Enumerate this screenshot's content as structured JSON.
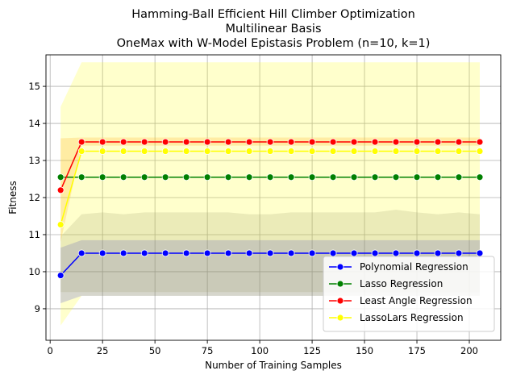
{
  "chart_data": {
    "type": "line",
    "title_lines": [
      "Hamming-Ball Efficient Hill Climber Optimization",
      "Multilinear Basis",
      "OneMax with W-Model Epistasis Problem (n=10, k=1)"
    ],
    "xlabel": "Number of Training Samples",
    "ylabel": "Fitness",
    "xlim": [
      -2,
      215
    ],
    "ylim": [
      8.15,
      15.85
    ],
    "xticks": [
      0,
      25,
      50,
      75,
      100,
      125,
      150,
      175,
      200
    ],
    "yticks": [
      9,
      10,
      11,
      12,
      13,
      14,
      15
    ],
    "grid": true,
    "legend_position": "lower-right",
    "x": [
      5,
      15,
      25,
      35,
      45,
      55,
      65,
      75,
      85,
      95,
      105,
      115,
      125,
      135,
      145,
      155,
      165,
      175,
      185,
      195,
      205
    ],
    "series": [
      {
        "name": "Polynomial Regression",
        "color": "#0000ff",
        "band_color": "#0000ff",
        "values": [
          9.9,
          10.5,
          10.5,
          10.5,
          10.5,
          10.5,
          10.5,
          10.5,
          10.5,
          10.5,
          10.5,
          10.5,
          10.5,
          10.5,
          10.5,
          10.5,
          10.5,
          10.5,
          10.5,
          10.5,
          10.5
        ],
        "band_lower": [
          9.15,
          9.35,
          9.35,
          9.35,
          9.35,
          9.35,
          9.35,
          9.35,
          9.35,
          9.35,
          9.35,
          9.35,
          9.35,
          9.35,
          9.35,
          9.35,
          9.35,
          9.35,
          9.35,
          9.35,
          9.35
        ],
        "band_upper": [
          10.65,
          10.85,
          10.85,
          10.85,
          10.85,
          10.85,
          10.85,
          10.85,
          10.85,
          10.85,
          10.85,
          10.85,
          10.85,
          10.85,
          10.85,
          10.85,
          10.85,
          10.85,
          10.85,
          10.85,
          10.85
        ]
      },
      {
        "name": "Lasso Regression",
        "color": "#008000",
        "band_color": "#808080",
        "values": [
          12.55,
          12.55,
          12.55,
          12.55,
          12.55,
          12.55,
          12.55,
          12.55,
          12.55,
          12.55,
          12.55,
          12.55,
          12.55,
          12.55,
          12.55,
          12.55,
          12.55,
          12.55,
          12.55,
          12.55,
          12.55
        ],
        "band_lower": [
          9.45,
          9.45,
          9.45,
          9.45,
          9.45,
          9.45,
          9.45,
          9.45,
          9.45,
          9.45,
          9.45,
          9.45,
          9.45,
          9.45,
          9.45,
          9.45,
          9.45,
          9.45,
          9.45,
          9.45,
          9.45
        ],
        "band_upper": [
          10.95,
          11.55,
          11.6,
          11.55,
          11.6,
          11.6,
          11.6,
          11.6,
          11.6,
          11.55,
          11.55,
          11.6,
          11.6,
          11.6,
          11.6,
          11.6,
          11.67,
          11.6,
          11.55,
          11.6,
          11.55
        ]
      },
      {
        "name": "Least Angle Regression",
        "color": "#ff0000",
        "band_color": "#ff8c00",
        "values": [
          12.2,
          13.5,
          13.5,
          13.5,
          13.5,
          13.5,
          13.5,
          13.5,
          13.5,
          13.5,
          13.5,
          13.5,
          13.5,
          13.5,
          13.5,
          13.5,
          13.5,
          13.5,
          13.5,
          13.5,
          13.5
        ],
        "band_lower": [
          10.8,
          13.4,
          13.4,
          13.4,
          13.4,
          13.4,
          13.4,
          13.4,
          13.4,
          13.4,
          13.4,
          13.4,
          13.4,
          13.4,
          13.4,
          13.4,
          13.4,
          13.4,
          13.4,
          13.4,
          13.4
        ],
        "band_upper": [
          13.6,
          13.62,
          13.62,
          13.62,
          13.62,
          13.62,
          13.62,
          13.62,
          13.62,
          13.62,
          13.62,
          13.62,
          13.62,
          13.62,
          13.62,
          13.62,
          13.62,
          13.62,
          13.62,
          13.62,
          13.62
        ]
      },
      {
        "name": "LassoLars Regression",
        "color": "#ffff00",
        "band_color": "#ffff00",
        "values": [
          11.27,
          13.25,
          13.25,
          13.25,
          13.25,
          13.25,
          13.25,
          13.25,
          13.25,
          13.25,
          13.25,
          13.25,
          13.25,
          13.25,
          13.25,
          13.25,
          13.25,
          13.25,
          13.25,
          13.25,
          13.25
        ],
        "band_lower": [
          8.55,
          9.35,
          9.35,
          9.35,
          9.35,
          9.35,
          9.35,
          9.35,
          9.35,
          9.35,
          9.35,
          9.35,
          9.35,
          9.35,
          9.35,
          9.35,
          9.35,
          9.35,
          9.35,
          9.35,
          9.35
        ],
        "band_upper": [
          14.45,
          15.65,
          15.65,
          15.65,
          15.65,
          15.65,
          15.65,
          15.65,
          15.65,
          15.65,
          15.65,
          15.65,
          15.65,
          15.65,
          15.65,
          15.65,
          15.65,
          15.65,
          15.65,
          15.65,
          15.65
        ]
      }
    ]
  }
}
